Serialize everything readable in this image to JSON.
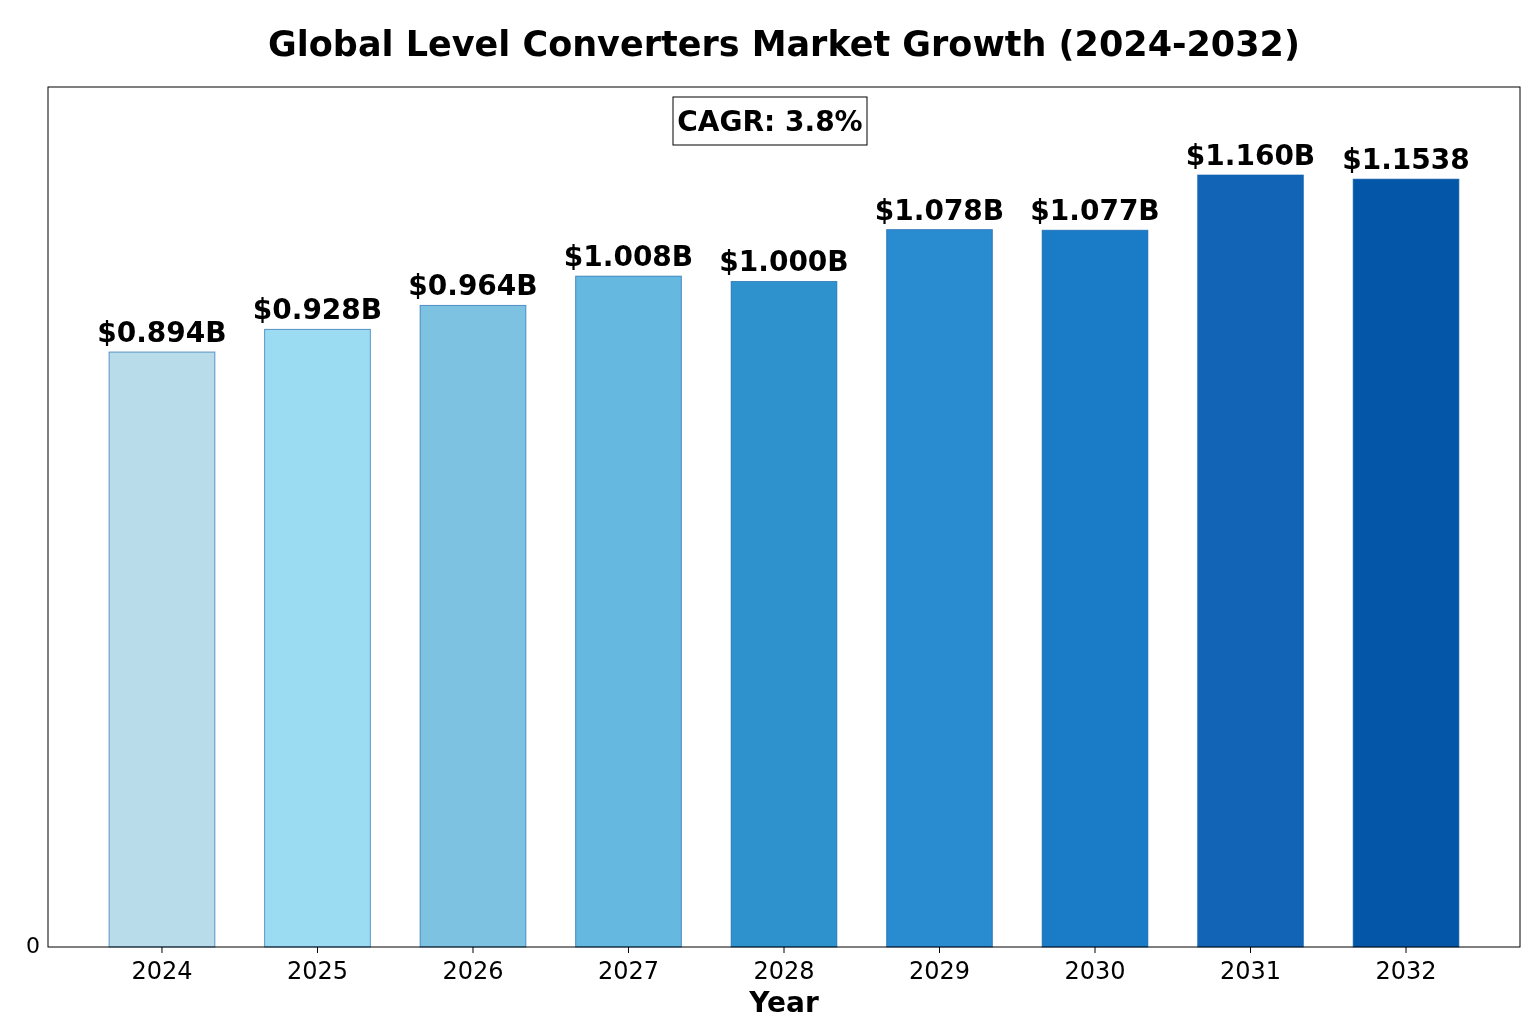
{
  "chart_data": {
    "type": "bar",
    "title": "Global Level Converters Market Growth (2024-2032)",
    "xlabel": "Year",
    "categories": [
      "2024",
      "2025",
      "2026",
      "2027",
      "2028",
      "2029",
      "2030",
      "2031",
      "2032"
    ],
    "values": [
      0.894,
      0.928,
      0.964,
      1.008,
      1.0,
      1.078,
      1.077,
      1.16,
      1.1538
    ],
    "colors": [
      "#b8dcea",
      "#9bdcf3",
      "#7dc3e1",
      "#65b8e0",
      "#2e93cc",
      "#2a8cd0",
      "#1a7bc6",
      "#1265b6",
      "#0456a8"
    ],
    "value_labels": [
      "$0.894B",
      "$0.928B",
      "$0.964B",
      "$1.008B",
      "$1.000B",
      "$1.078B",
      "$1.077B",
      "$1.160B",
      "$1.1538"
    ],
    "annotations": [
      "CAGR: 3.8%",
      "0"
    ]
  }
}
